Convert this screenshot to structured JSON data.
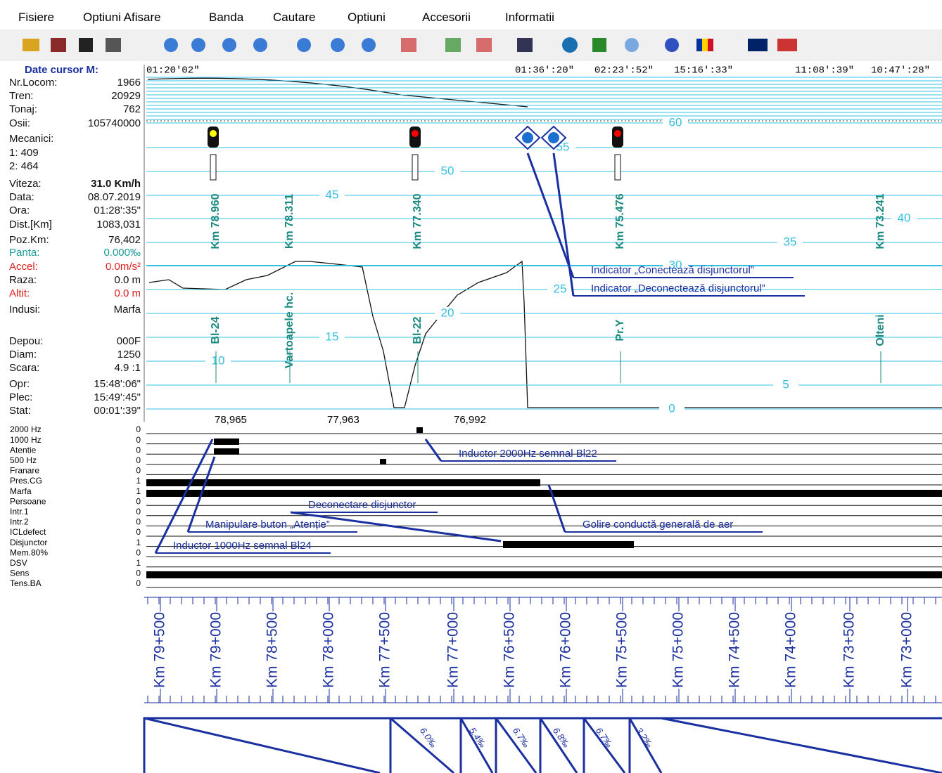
{
  "menu": [
    "Fisiere",
    "Optiuni Afisare",
    "Banda",
    "Cautare",
    "Optiuni",
    "Accesorii",
    "Informatii"
  ],
  "cursor_panel": {
    "title": "Date cursor M:",
    "rows": [
      [
        "Nr.Locom:",
        "1966"
      ],
      [
        "Tren:",
        "20929"
      ],
      [
        "Tonaj:",
        "762"
      ],
      [
        "Osii:",
        "105740000"
      ],
      [
        "Mecanici:",
        ""
      ],
      [
        "1: 409",
        ""
      ],
      [
        "2: 464",
        ""
      ],
      [
        "Viteza:",
        "31.0 Km/h"
      ],
      [
        "Data:",
        "08.07.2019"
      ],
      [
        "Ora:",
        "01:28':35\""
      ],
      [
        "Dist.[Km]",
        "1083,031"
      ],
      [
        "Poz.Km:",
        "76,402"
      ],
      [
        "Panta:",
        "0.000‰"
      ],
      [
        "Accel:",
        "0.0m/s²"
      ],
      [
        "Raza:",
        "0.0 m"
      ],
      [
        "Altit:",
        "0.0 m"
      ],
      [
        "Indusi:",
        "Marfa"
      ],
      [
        "Depou:",
        "000F"
      ],
      [
        "Diam:",
        "1250"
      ],
      [
        "Scara:",
        "4.9 :1"
      ],
      [
        "Opr:",
        "15:48':06\""
      ],
      [
        "Plec:",
        "15:49':45\""
      ],
      [
        "Stat:",
        "00:01':39\""
      ]
    ]
  },
  "time_labels": [
    "01:20'02\"",
    "01:36':20\"",
    "02:23':52\"",
    "15:16':33\"",
    "11:08':39\"",
    "10:47':28\""
  ],
  "speed_scale": [
    "60",
    "55",
    "50",
    "45",
    "40",
    "35",
    "30",
    "25",
    "20",
    "15",
    "10",
    "5",
    "0"
  ],
  "km_markers": [
    "Km 78.960",
    "Km 78.311",
    "Km 77.340",
    "Km 75.476",
    "Km 73.241"
  ],
  "stations": [
    "Bl-24",
    "Vartoapele hc.",
    "Bl-22",
    "Pr.Y",
    "Olteni"
  ],
  "distance_labels": [
    "78,965",
    "77,963",
    "76,992"
  ],
  "signals": [
    [
      "2000 Hz",
      "0"
    ],
    [
      "1000 Hz",
      "0"
    ],
    [
      "Atentie",
      "0"
    ],
    [
      "500 Hz",
      "0"
    ],
    [
      "Franare",
      "0"
    ],
    [
      "Pres.CG",
      "1"
    ],
    [
      "Marfa",
      "1"
    ],
    [
      "Persoane",
      "0"
    ],
    [
      "Intr.1",
      "0"
    ],
    [
      "Intr.2",
      "0"
    ],
    [
      "ICLdefect",
      "0"
    ],
    [
      "Disjunctor",
      "1"
    ],
    [
      "Mem.80%",
      "0"
    ],
    [
      "DSV",
      "1"
    ],
    [
      "Sens",
      "0"
    ],
    [
      "Tens.BA",
      "0"
    ]
  ],
  "annotations": [
    "Indicator „Conectează disjunctorul”",
    "Indicator „Deconectează disjunctorul”",
    "Inductor 2000Hz semnal Bl22",
    "Deconectare disjunctor",
    "Manipulare buton „Atenție”",
    "Golire conductă generală de aer",
    "Inductor 1000Hz semnal Bl24"
  ],
  "km_axis": [
    "Km 79+500",
    "Km 79+000",
    "Km 78+500",
    "Km 78+000",
    "Km 77+500",
    "Km 77+000",
    "Km 76+500",
    "Km 76+000",
    "Km 75+500",
    "Km 75+000",
    "Km 74+500",
    "Km 74+000",
    "Km 73+500",
    "Km 73+000"
  ],
  "gradients": [
    "6.0‰",
    "5.4‰",
    "6.7‰",
    "6.8‰",
    "6.7‰",
    "3.2‰"
  ]
}
